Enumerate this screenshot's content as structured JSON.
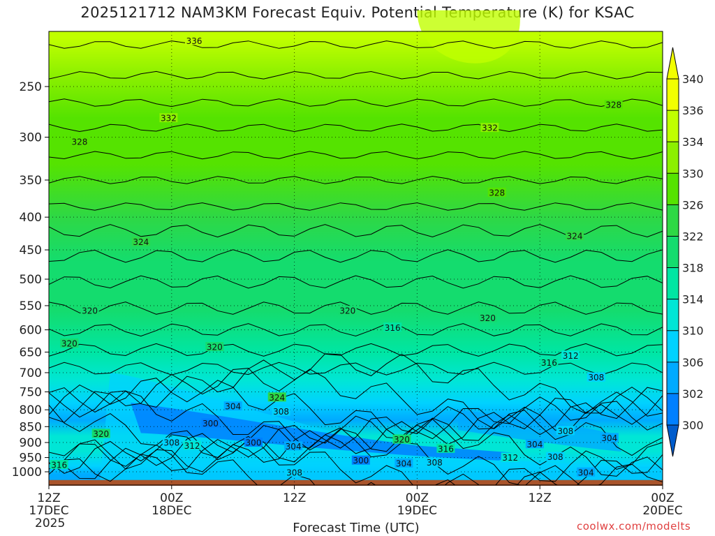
{
  "chart_data": {
    "type": "heatmap",
    "title": "2025121712 NAM3KM Forecast Equiv. Potential Temperature (K) for KSAC",
    "xlabel": "Forecast Time (UTC)",
    "ylabel": "",
    "credit": "coolwx.com/modelts",
    "x_ticks": [
      {
        "hour": 0,
        "lines": [
          "12Z",
          "17DEC",
          "2025"
        ]
      },
      {
        "hour": 12,
        "lines": [
          "00Z",
          "18DEC"
        ]
      },
      {
        "hour": 24,
        "lines": [
          "12Z"
        ]
      },
      {
        "hour": 36,
        "lines": [
          "00Z",
          "19DEC"
        ]
      },
      {
        "hour": 48,
        "lines": [
          "12Z"
        ]
      },
      {
        "hour": 60,
        "lines": [
          "00Z",
          "20DEC"
        ]
      }
    ],
    "xlim": [
      0,
      60
    ],
    "y_ticks": [
      250,
      300,
      350,
      400,
      450,
      500,
      550,
      600,
      650,
      700,
      750,
      800,
      850,
      900,
      950,
      1000
    ],
    "ylim": [
      1030,
      200
    ],
    "y_scale": "log",
    "grid": true,
    "colorbar": {
      "ticks": [
        340,
        336,
        334,
        330,
        326,
        322,
        318,
        314,
        310,
        306,
        302,
        300
      ],
      "levels": [
        {
          "value": 340,
          "color": "#f2ff00"
        },
        {
          "value": 336,
          "color": "#c0ff00"
        },
        {
          "value": 332,
          "color": "#8cf000"
        },
        {
          "value": 328,
          "color": "#55e300"
        },
        {
          "value": 324,
          "color": "#2ed845"
        },
        {
          "value": 320,
          "color": "#14dc6e"
        },
        {
          "value": 316,
          "color": "#00e6a3"
        },
        {
          "value": 312,
          "color": "#00e6d6"
        },
        {
          "value": 308,
          "color": "#00d2ff"
        },
        {
          "value": 304,
          "color": "#00aaff"
        },
        {
          "value": 300,
          "color": "#0080ff"
        }
      ]
    },
    "contour_labels": [
      {
        "hour": 14.2,
        "p": 212,
        "text": "336"
      },
      {
        "hour": 11.7,
        "p": 280,
        "text": "332"
      },
      {
        "hour": 43.1,
        "p": 290,
        "text": "332"
      },
      {
        "hour": 55.2,
        "p": 267,
        "text": "328"
      },
      {
        "hour": 3.0,
        "p": 305,
        "text": "328"
      },
      {
        "hour": 43.8,
        "p": 366,
        "text": "328"
      },
      {
        "hour": 9.0,
        "p": 437,
        "text": "324"
      },
      {
        "hour": 51.4,
        "p": 428,
        "text": "324"
      },
      {
        "hour": 29.2,
        "p": 560,
        "text": "320"
      },
      {
        "hour": 42.9,
        "p": 575,
        "text": "320"
      },
      {
        "hour": 4.0,
        "p": 560,
        "text": "320"
      },
      {
        "hour": 2.0,
        "p": 630,
        "text": "320"
      },
      {
        "hour": 33.6,
        "p": 595,
        "text": "316"
      },
      {
        "hour": 16.2,
        "p": 638,
        "text": "320"
      },
      {
        "hour": 51.0,
        "p": 658,
        "text": "312"
      },
      {
        "hour": 48.9,
        "p": 675,
        "text": "316"
      },
      {
        "hour": 53.5,
        "p": 712,
        "text": "308"
      },
      {
        "hour": 22.3,
        "p": 765,
        "text": "324"
      },
      {
        "hour": 18.0,
        "p": 790,
        "text": "304"
      },
      {
        "hour": 22.7,
        "p": 805,
        "text": "308"
      },
      {
        "hour": 15.8,
        "p": 840,
        "text": "300"
      },
      {
        "hour": 5.1,
        "p": 872,
        "text": "320"
      },
      {
        "hour": 12.0,
        "p": 900,
        "text": "308"
      },
      {
        "hour": 14.0,
        "p": 910,
        "text": "312"
      },
      {
        "hour": 20.0,
        "p": 900,
        "text": "300"
      },
      {
        "hour": 23.9,
        "p": 912,
        "text": "304"
      },
      {
        "hour": 34.5,
        "p": 890,
        "text": "320"
      },
      {
        "hour": 38.8,
        "p": 920,
        "text": "316"
      },
      {
        "hour": 47.5,
        "p": 905,
        "text": "304"
      },
      {
        "hour": 50.5,
        "p": 863,
        "text": "308"
      },
      {
        "hour": 54.8,
        "p": 885,
        "text": "304"
      },
      {
        "hour": 30.5,
        "p": 960,
        "text": "300"
      },
      {
        "hour": 34.7,
        "p": 970,
        "text": "304"
      },
      {
        "hour": 37.7,
        "p": 967,
        "text": "308"
      },
      {
        "hour": 45.1,
        "p": 950,
        "text": "312"
      },
      {
        "hour": 49.5,
        "p": 948,
        "text": "308"
      },
      {
        "hour": 1.0,
        "p": 975,
        "text": "316"
      },
      {
        "hour": 24.0,
        "p": 1002,
        "text": "308"
      },
      {
        "hour": 52.5,
        "p": 1002,
        "text": "304"
      }
    ]
  }
}
